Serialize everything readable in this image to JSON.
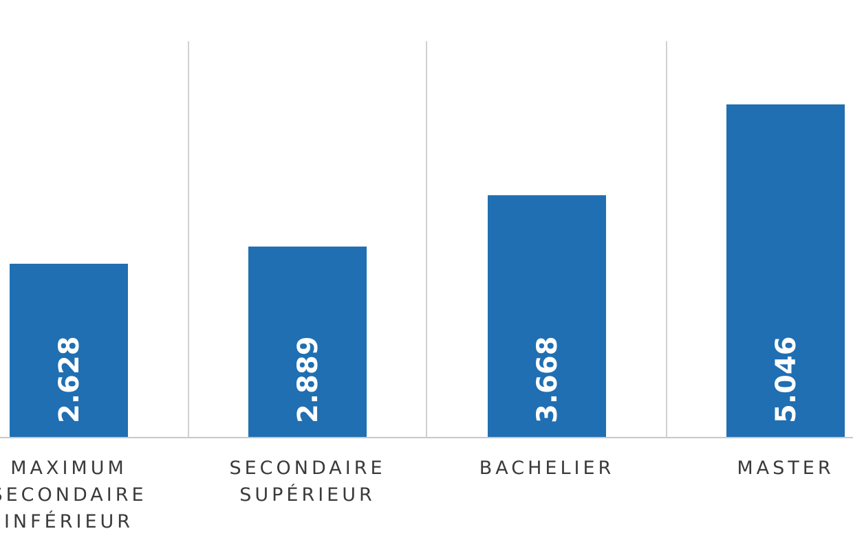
{
  "colors": {
    "bar": "#1f6fb2",
    "grid": "#d0d0d0",
    "axis": "#c8c8c8",
    "label": "#3a3a3a",
    "value_text": "#ffffff"
  },
  "chart_data": {
    "type": "bar",
    "categories": [
      [
        "MAXIMUM",
        "SECONDAIRE",
        "INFÉRIEUR"
      ],
      [
        "SECONDAIRE",
        "SUPÉRIEUR"
      ],
      [
        "BACHELIER"
      ],
      [
        "MASTER"
      ]
    ],
    "values": [
      2628,
      2889,
      3668,
      5046
    ],
    "value_labels": [
      "2.628",
      "2.889",
      "3.668",
      "5.046"
    ],
    "ylim": [
      0,
      6000
    ],
    "grid": "vertical separators between categories",
    "legend": "none"
  }
}
